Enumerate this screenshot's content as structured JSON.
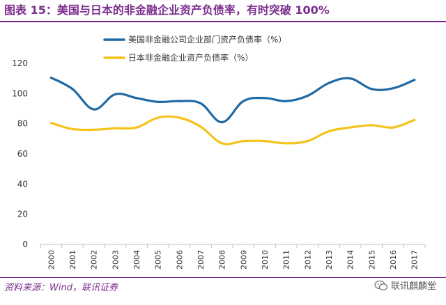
{
  "title": "图表 15：美国与日本的非金融企业资产负债率，有时突破 100%",
  "source": "资料来源：Wind，联讯证券",
  "watermark": "联讯麒麟堂",
  "chart_data": {
    "type": "line",
    "categories": [
      "2000",
      "2001",
      "2002",
      "2003",
      "2004",
      "2005",
      "2006",
      "2007",
      "2008",
      "2009",
      "2010",
      "2011",
      "2012",
      "2013",
      "2014",
      "2015",
      "2016",
      "2017"
    ],
    "series": [
      {
        "name": "美国非金融公司企业部门资产负债率（%）",
        "color": "#1f6aa5",
        "values": [
          110.5,
          103,
          89.5,
          99.5,
          97,
          94.5,
          95,
          93.5,
          81,
          95,
          97,
          95,
          98.5,
          107,
          110,
          103,
          103.5,
          109
        ]
      },
      {
        "name": "日本非金融企业资产负债率（%）",
        "color": "#f5c21b",
        "values": [
          80.5,
          76.5,
          76,
          77,
          77.5,
          84,
          84,
          78,
          67,
          68.5,
          68.5,
          67,
          68.5,
          75,
          77.5,
          79,
          77.5,
          82.5
        ]
      }
    ],
    "yticks": [
      0,
      20,
      40,
      60,
      80,
      100,
      120
    ],
    "ylim": [
      0,
      120
    ],
    "legend_position": "top-left",
    "grid": false
  }
}
